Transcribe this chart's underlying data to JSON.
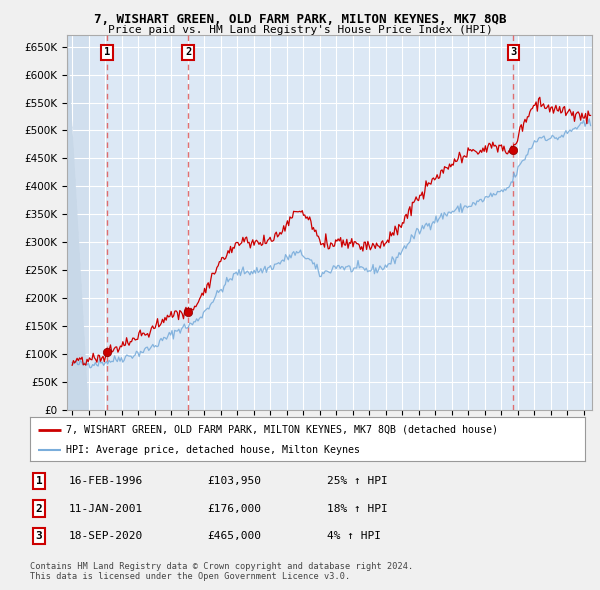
{
  "title": "7, WISHART GREEN, OLD FARM PARK, MILTON KEYNES, MK7 8QB",
  "subtitle": "Price paid vs. HM Land Registry's House Price Index (HPI)",
  "ylim": [
    0,
    670000
  ],
  "yticks": [
    0,
    50000,
    100000,
    150000,
    200000,
    250000,
    300000,
    350000,
    400000,
    450000,
    500000,
    550000,
    600000,
    650000
  ],
  "xlim_start": 1993.7,
  "xlim_end": 2025.5,
  "sales": [
    {
      "year": 1996.12,
      "price": 103950,
      "label": "1"
    },
    {
      "year": 2001.03,
      "price": 176000,
      "label": "2"
    },
    {
      "year": 2020.72,
      "price": 465000,
      "label": "3"
    }
  ],
  "legend_line1": "7, WISHART GREEN, OLD FARM PARK, MILTON KEYNES, MK7 8QB (detached house)",
  "legend_line2": "HPI: Average price, detached house, Milton Keynes",
  "table": [
    {
      "num": "1",
      "date": "16-FEB-1996",
      "price": "£103,950",
      "note": "25% ↑ HPI"
    },
    {
      "num": "2",
      "date": "11-JAN-2001",
      "price": "£176,000",
      "note": "18% ↑ HPI"
    },
    {
      "num": "3",
      "date": "18-SEP-2020",
      "price": "£465,000",
      "note": "4% ↑ HPI"
    }
  ],
  "footer": "Contains HM Land Registry data © Crown copyright and database right 2024.\nThis data is licensed under the Open Government Licence v3.0.",
  "bg_color": "#f0f0f0",
  "plot_bg_color": "#dce8f5",
  "grid_color": "#ffffff",
  "red_line_color": "#cc0000",
  "blue_line_color": "#7aaddb",
  "sale_dot_color": "#cc0000",
  "dashed_line_color": "#e06060"
}
